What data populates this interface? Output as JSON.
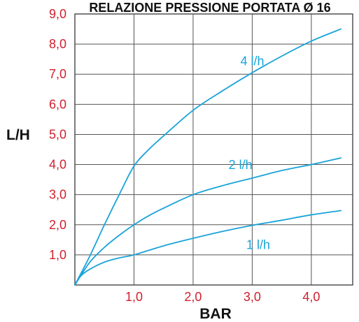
{
  "chart_data": {
    "type": "line",
    "title": "RELAZIONE PRESSIONE PORTATA Ø 16",
    "xlabel": "BAR",
    "ylabel": "L/H",
    "xlim": [
      0,
      4.7
    ],
    "ylim": [
      0,
      9
    ],
    "grid": true,
    "x_ticks": [
      {
        "value": 1,
        "label": "1,0"
      },
      {
        "value": 2,
        "label": "2,0"
      },
      {
        "value": 3,
        "label": "3,0"
      },
      {
        "value": 4,
        "label": "4,0"
      }
    ],
    "y_ticks": [
      {
        "value": 1,
        "label": "1,0"
      },
      {
        "value": 2,
        "label": "2,0"
      },
      {
        "value": 3,
        "label": "3,0"
      },
      {
        "value": 4,
        "label": "4,0"
      },
      {
        "value": 5,
        "label": "5,0"
      },
      {
        "value": 6,
        "label": "6,0"
      },
      {
        "value": 7,
        "label": "7,0"
      },
      {
        "value": 8,
        "label": "8,0"
      },
      {
        "value": 9,
        "label": "9,0"
      }
    ],
    "series": [
      {
        "name": "4 l/h",
        "x": [
          0,
          0.25,
          0.5,
          0.75,
          1.0,
          1.25,
          1.5,
          2.0,
          2.5,
          3.0,
          3.5,
          4.0,
          4.5
        ],
        "values": [
          0,
          0.95,
          2.0,
          3.0,
          3.95,
          4.5,
          4.95,
          5.8,
          6.45,
          7.05,
          7.6,
          8.1,
          8.5
        ]
      },
      {
        "name": "2 l/h",
        "x": [
          0,
          0.25,
          0.5,
          0.75,
          1.0,
          1.25,
          1.5,
          2.0,
          2.5,
          3.0,
          3.5,
          4.0,
          4.5
        ],
        "values": [
          0,
          0.75,
          1.25,
          1.65,
          2.0,
          2.3,
          2.55,
          3.0,
          3.3,
          3.55,
          3.8,
          4.0,
          4.22
        ]
      },
      {
        "name": "1 l/h",
        "x": [
          0,
          0.1,
          0.25,
          0.5,
          0.75,
          1.0,
          1.5,
          2.0,
          2.5,
          3.0,
          3.5,
          4.0,
          4.5
        ],
        "values": [
          0,
          0.3,
          0.52,
          0.76,
          0.9,
          1.0,
          1.3,
          1.55,
          1.78,
          1.98,
          2.15,
          2.33,
          2.47
        ]
      }
    ]
  },
  "colors": {
    "series": "#1aa3d9",
    "tick_labels": "#d0202e",
    "axis_labels": "#111111",
    "grid": "#444444",
    "gridlines": "#555555"
  }
}
